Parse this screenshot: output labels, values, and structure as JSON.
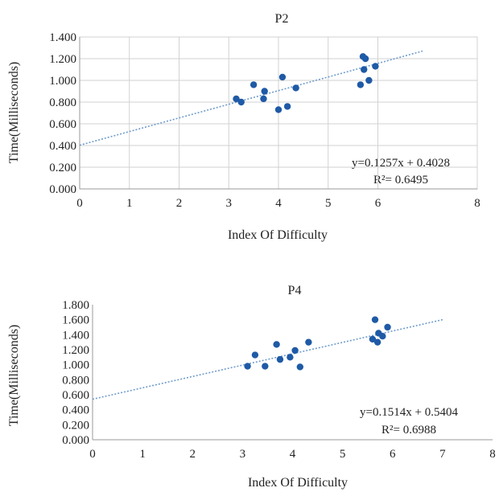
{
  "chart_data": [
    {
      "type": "scatter",
      "title": "P2",
      "xlabel": "Index Of Difficulty",
      "ylabel": "Time(Milliseconds)",
      "xlim": [
        0,
        8
      ],
      "ylim": [
        0,
        1.4
      ],
      "xticks": [
        "0",
        "1",
        "2",
        "3",
        "4",
        "5",
        "6",
        "8"
      ],
      "yticks": [
        "0.000",
        "0.200",
        "0.400",
        "0.600",
        "0.800",
        "1.000",
        "1.200",
        "1.400"
      ],
      "grid": true,
      "trendline": {
        "slope": 0.1257,
        "intercept": 0.4028,
        "x_range": [
          0,
          6.9
        ]
      },
      "equation": "y=0.1257x + 0.4028",
      "r_squared": "R²= 0.6495",
      "points": [
        {
          "x": 3.15,
          "y": 0.83
        },
        {
          "x": 3.25,
          "y": 0.8
        },
        {
          "x": 3.5,
          "y": 0.96
        },
        {
          "x": 3.7,
          "y": 0.83
        },
        {
          "x": 3.72,
          "y": 0.9
        },
        {
          "x": 4.0,
          "y": 0.73
        },
        {
          "x": 4.08,
          "y": 1.03
        },
        {
          "x": 4.18,
          "y": 0.76
        },
        {
          "x": 4.35,
          "y": 0.93
        },
        {
          "x": 5.65,
          "y": 0.96
        },
        {
          "x": 5.7,
          "y": 1.22
        },
        {
          "x": 5.75,
          "y": 1.2
        },
        {
          "x": 5.72,
          "y": 1.1
        },
        {
          "x": 5.82,
          "y": 1.0
        },
        {
          "x": 5.95,
          "y": 1.13
        }
      ]
    },
    {
      "type": "scatter",
      "title": "P4",
      "xlabel": "Index Of Difficulty",
      "ylabel": "Time(Milliseconds)",
      "xlim": [
        0,
        8
      ],
      "ylim": [
        0,
        1.8
      ],
      "xticks": [
        "0",
        "1",
        "2",
        "3",
        "4",
        "5",
        "6",
        "7",
        "8"
      ],
      "yticks": [
        "0.000",
        "0.200",
        "0.400",
        "0.600",
        "0.800",
        "1.000",
        "1.200",
        "1.400",
        "1.600",
        "1.800"
      ],
      "grid": false,
      "trendline": {
        "slope": 0.1514,
        "intercept": 0.5404,
        "x_range": [
          0,
          7.0
        ]
      },
      "equation": "y=0.1514x + 0.5404",
      "r_squared": "R²= 0.6988",
      "points": [
        {
          "x": 3.1,
          "y": 0.98
        },
        {
          "x": 3.25,
          "y": 1.13
        },
        {
          "x": 3.45,
          "y": 0.98
        },
        {
          "x": 3.68,
          "y": 1.27
        },
        {
          "x": 3.75,
          "y": 1.07
        },
        {
          "x": 3.95,
          "y": 1.1
        },
        {
          "x": 4.05,
          "y": 1.19
        },
        {
          "x": 4.15,
          "y": 0.97
        },
        {
          "x": 4.32,
          "y": 1.3
        },
        {
          "x": 5.6,
          "y": 1.34
        },
        {
          "x": 5.65,
          "y": 1.6
        },
        {
          "x": 5.72,
          "y": 1.42
        },
        {
          "x": 5.7,
          "y": 1.3
        },
        {
          "x": 5.8,
          "y": 1.38
        },
        {
          "x": 5.9,
          "y": 1.5
        }
      ]
    }
  ]
}
